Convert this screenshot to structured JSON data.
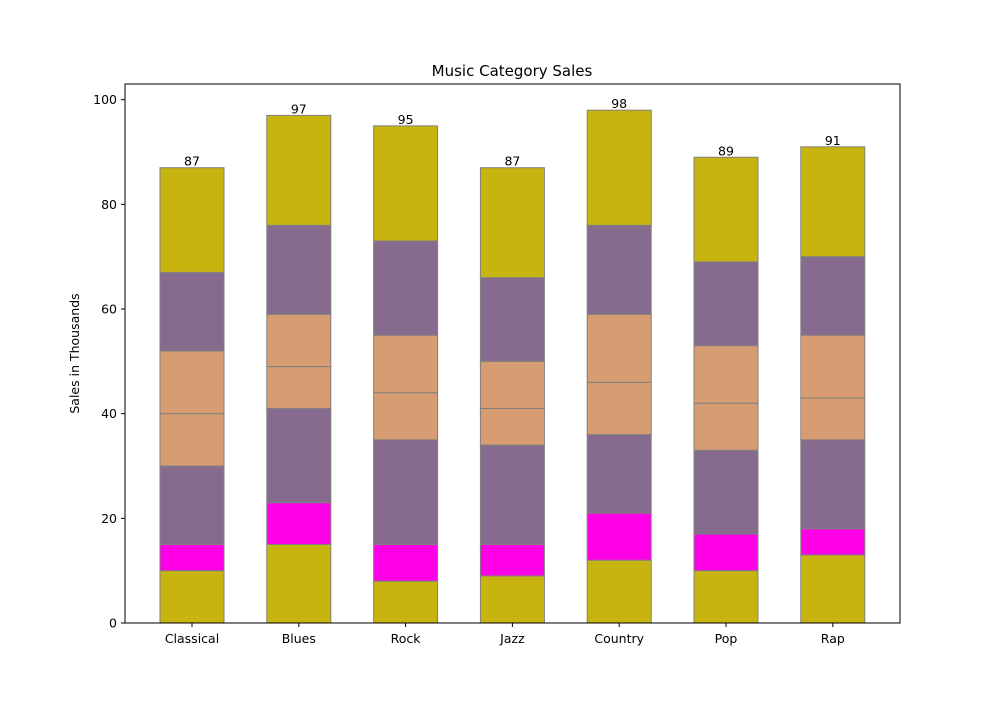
{
  "chart_data": {
    "type": "bar",
    "stacked": true,
    "title": "Music Category Sales",
    "xlabel": "",
    "ylabel": "Sales in Thousands",
    "ylim": [
      0,
      103
    ],
    "yticks": [
      0,
      20,
      40,
      60,
      80,
      100
    ],
    "grid": false,
    "categories": [
      "Classical",
      "Blues",
      "Rock",
      "Jazz",
      "Country",
      "Pop",
      "Rap"
    ],
    "series": [
      {
        "color": "#c8b40e",
        "values": [
          10,
          15,
          8,
          9,
          12,
          10,
          13
        ]
      },
      {
        "color": "#ff00e6",
        "values": [
          5,
          8,
          7,
          6,
          9,
          7,
          5
        ]
      },
      {
        "color": "#866b8e",
        "values": [
          15,
          18,
          20,
          19,
          15,
          16,
          17
        ]
      },
      {
        "color": "#d89c72",
        "values": [
          10,
          8,
          9,
          7,
          10,
          9,
          8
        ]
      },
      {
        "color": "#d89c72",
        "values": [
          12,
          10,
          11,
          9,
          13,
          11,
          12
        ]
      },
      {
        "color": "#866b8e",
        "values": [
          15,
          17,
          18,
          16,
          17,
          16,
          15
        ]
      },
      {
        "color": "#c8b40e",
        "values": [
          20,
          21,
          22,
          21,
          22,
          20,
          21
        ]
      }
    ],
    "totals": [
      87,
      97,
      95,
      87,
      98,
      89,
      91
    ]
  }
}
